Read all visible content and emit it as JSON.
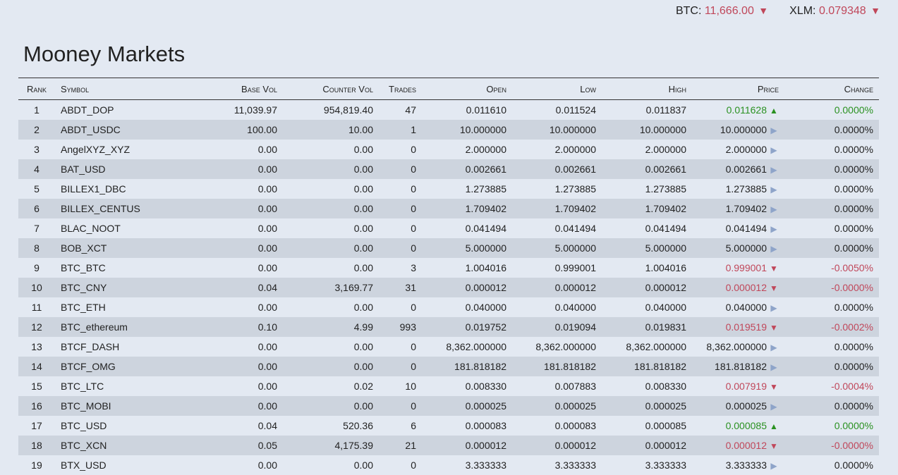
{
  "ticker": [
    {
      "label": "BTC:",
      "value": "11,666.00",
      "arrow": "▼"
    },
    {
      "label": "XLM:",
      "value": "0.079348",
      "arrow": "▼"
    }
  ],
  "page_title": "Mooney Markets",
  "table": {
    "headers": [
      "Rank",
      "Symbol",
      "Base Vol",
      "Counter Vol",
      "Trades",
      "Open",
      "Low",
      "High",
      "Price",
      "Change"
    ],
    "rows": [
      {
        "rank": "1",
        "symbol": "ABDT_DOP",
        "base_vol": "11,039.97",
        "counter_vol": "954,819.40",
        "trades": "47",
        "open": "0.011610",
        "low": "0.011524",
        "high": "0.011837",
        "price": "0.011628",
        "dir": "up",
        "change": "0.0000%"
      },
      {
        "rank": "2",
        "symbol": "ABDT_USDC",
        "base_vol": "100.00",
        "counter_vol": "10.00",
        "trades": "1",
        "open": "10.000000",
        "low": "10.000000",
        "high": "10.000000",
        "price": "10.000000",
        "dir": "neutral",
        "change": "0.0000%"
      },
      {
        "rank": "3",
        "symbol": "AngelXYZ_XYZ",
        "base_vol": "0.00",
        "counter_vol": "0.00",
        "trades": "0",
        "open": "2.000000",
        "low": "2.000000",
        "high": "2.000000",
        "price": "2.000000",
        "dir": "neutral",
        "change": "0.0000%"
      },
      {
        "rank": "4",
        "symbol": "BAT_USD",
        "base_vol": "0.00",
        "counter_vol": "0.00",
        "trades": "0",
        "open": "0.002661",
        "low": "0.002661",
        "high": "0.002661",
        "price": "0.002661",
        "dir": "neutral",
        "change": "0.0000%"
      },
      {
        "rank": "5",
        "symbol": "BILLEX1_DBC",
        "base_vol": "0.00",
        "counter_vol": "0.00",
        "trades": "0",
        "open": "1.273885",
        "low": "1.273885",
        "high": "1.273885",
        "price": "1.273885",
        "dir": "neutral",
        "change": "0.0000%"
      },
      {
        "rank": "6",
        "symbol": "BILLEX_CENTUS",
        "base_vol": "0.00",
        "counter_vol": "0.00",
        "trades": "0",
        "open": "1.709402",
        "low": "1.709402",
        "high": "1.709402",
        "price": "1.709402",
        "dir": "neutral",
        "change": "0.0000%"
      },
      {
        "rank": "7",
        "symbol": "BLAC_NOOT",
        "base_vol": "0.00",
        "counter_vol": "0.00",
        "trades": "0",
        "open": "0.041494",
        "low": "0.041494",
        "high": "0.041494",
        "price": "0.041494",
        "dir": "neutral",
        "change": "0.0000%"
      },
      {
        "rank": "8",
        "symbol": "BOB_XCT",
        "base_vol": "0.00",
        "counter_vol": "0.00",
        "trades": "0",
        "open": "5.000000",
        "low": "5.000000",
        "high": "5.000000",
        "price": "5.000000",
        "dir": "neutral",
        "change": "0.0000%"
      },
      {
        "rank": "9",
        "symbol": "BTC_BTC",
        "base_vol": "0.00",
        "counter_vol": "0.00",
        "trades": "3",
        "open": "1.004016",
        "low": "0.999001",
        "high": "1.004016",
        "price": "0.999001",
        "dir": "down",
        "change": "-0.0050%"
      },
      {
        "rank": "10",
        "symbol": "BTC_CNY",
        "base_vol": "0.04",
        "counter_vol": "3,169.77",
        "trades": "31",
        "open": "0.000012",
        "low": "0.000012",
        "high": "0.000012",
        "price": "0.000012",
        "dir": "down",
        "change": "-0.0000%"
      },
      {
        "rank": "11",
        "symbol": "BTC_ETH",
        "base_vol": "0.00",
        "counter_vol": "0.00",
        "trades": "0",
        "open": "0.040000",
        "low": "0.040000",
        "high": "0.040000",
        "price": "0.040000",
        "dir": "neutral",
        "change": "0.0000%"
      },
      {
        "rank": "12",
        "symbol": "BTC_ethereum",
        "base_vol": "0.10",
        "counter_vol": "4.99",
        "trades": "993",
        "open": "0.019752",
        "low": "0.019094",
        "high": "0.019831",
        "price": "0.019519",
        "dir": "down",
        "change": "-0.0002%"
      },
      {
        "rank": "13",
        "symbol": "BTCF_DASH",
        "base_vol": "0.00",
        "counter_vol": "0.00",
        "trades": "0",
        "open": "8,362.000000",
        "low": "8,362.000000",
        "high": "8,362.000000",
        "price": "8,362.000000",
        "dir": "neutral",
        "change": "0.0000%"
      },
      {
        "rank": "14",
        "symbol": "BTCF_OMG",
        "base_vol": "0.00",
        "counter_vol": "0.00",
        "trades": "0",
        "open": "181.818182",
        "low": "181.818182",
        "high": "181.818182",
        "price": "181.818182",
        "dir": "neutral",
        "change": "0.0000%"
      },
      {
        "rank": "15",
        "symbol": "BTC_LTC",
        "base_vol": "0.00",
        "counter_vol": "0.02",
        "trades": "10",
        "open": "0.008330",
        "low": "0.007883",
        "high": "0.008330",
        "price": "0.007919",
        "dir": "down",
        "change": "-0.0004%"
      },
      {
        "rank": "16",
        "symbol": "BTC_MOBI",
        "base_vol": "0.00",
        "counter_vol": "0.00",
        "trades": "0",
        "open": "0.000025",
        "low": "0.000025",
        "high": "0.000025",
        "price": "0.000025",
        "dir": "neutral",
        "change": "0.0000%"
      },
      {
        "rank": "17",
        "symbol": "BTC_USD",
        "base_vol": "0.04",
        "counter_vol": "520.36",
        "trades": "6",
        "open": "0.000083",
        "low": "0.000083",
        "high": "0.000085",
        "price": "0.000085",
        "dir": "up",
        "change": "0.0000%"
      },
      {
        "rank": "18",
        "symbol": "BTC_XCN",
        "base_vol": "0.05",
        "counter_vol": "4,175.39",
        "trades": "21",
        "open": "0.000012",
        "low": "0.000012",
        "high": "0.000012",
        "price": "0.000012",
        "dir": "down",
        "change": "-0.0000%"
      },
      {
        "rank": "19",
        "symbol": "BTX_USD",
        "base_vol": "0.00",
        "counter_vol": "0.00",
        "trades": "0",
        "open": "3.333333",
        "low": "3.333333",
        "high": "3.333333",
        "price": "3.333333",
        "dir": "neutral",
        "change": "0.0000%"
      }
    ]
  },
  "arrows": {
    "up": "▲",
    "down": "▼",
    "neutral": "▶"
  },
  "colors": {
    "up": "#2a9121",
    "down": "#c0475a",
    "neutral": "#8ea4c9",
    "background": "#e3e9f2",
    "stripe": "#cdd4de"
  }
}
